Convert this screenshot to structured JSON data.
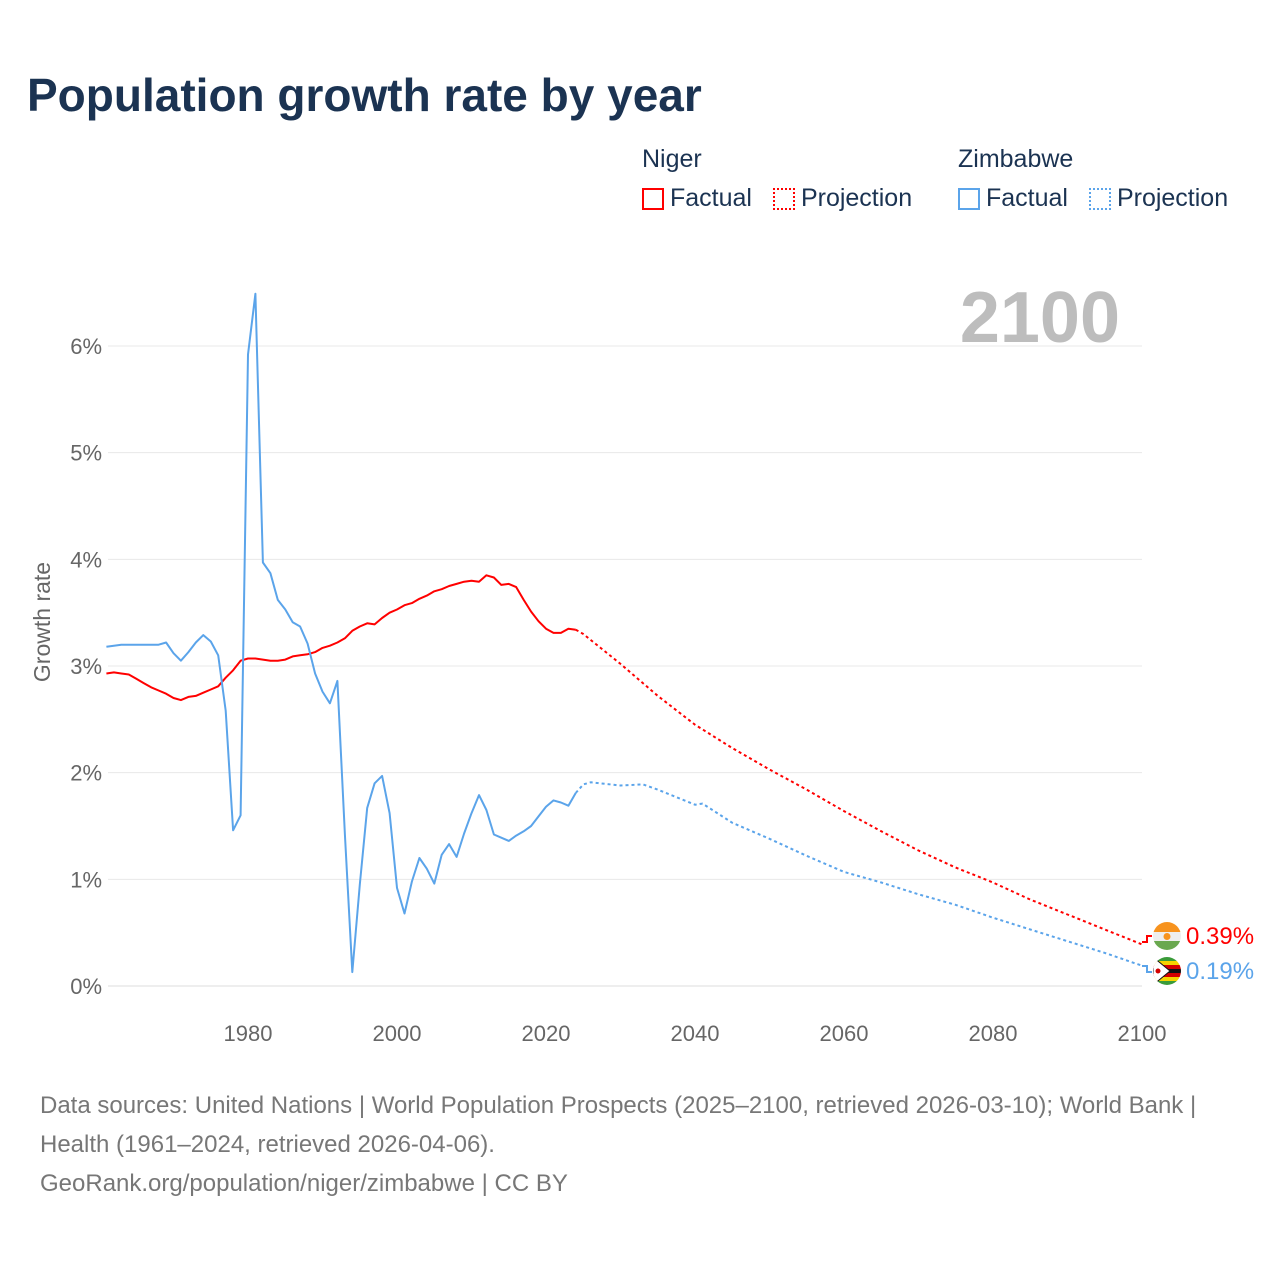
{
  "title": "Population growth rate by year",
  "legend": {
    "groups": [
      {
        "name": "Niger",
        "color": "#ff0000",
        "items": [
          "Factual",
          "Projection"
        ]
      },
      {
        "name": "Zimbabwe",
        "color": "#5ba4ea",
        "items": [
          "Factual",
          "Projection"
        ]
      }
    ]
  },
  "year_label": "2100",
  "end_labels": {
    "niger": "0.39%",
    "zimbabwe": "0.19%"
  },
  "footer": {
    "sources": "Data sources: United Nations | World Population Prospects (2025–2100, retrieved 2026-03-10); World Bank | Health (1961–2024, retrieved 2026-04-06).",
    "attribution": "GeoRank.org/population/niger/zimbabwe | CC BY"
  },
  "chart_data": {
    "type": "line",
    "title": "Population growth rate by year",
    "xlabel": "",
    "ylabel": "Growth rate",
    "xlim": [
      1961,
      2100
    ],
    "ylim": [
      0,
      6.5
    ],
    "xticks": [
      1980,
      2000,
      2020,
      2040,
      2060,
      2080,
      2100
    ],
    "yticks": [
      0,
      1,
      2,
      3,
      4,
      5,
      6
    ],
    "ytick_labels": [
      "0%",
      "1%",
      "2%",
      "3%",
      "4%",
      "5%",
      "6%"
    ],
    "grid": true,
    "series": [
      {
        "name": "Niger Factual",
        "color": "#ff0000",
        "style": "solid",
        "start_year": 1961,
        "values": [
          2.93,
          2.94,
          2.93,
          2.92,
          2.88,
          2.84,
          2.8,
          2.77,
          2.74,
          2.7,
          2.68,
          2.71,
          2.72,
          2.75,
          2.78,
          2.81,
          2.89,
          2.96,
          3.05,
          3.07,
          3.07,
          3.06,
          3.05,
          3.05,
          3.06,
          3.09,
          3.1,
          3.11,
          3.13,
          3.17,
          3.19,
          3.22,
          3.26,
          3.33,
          3.37,
          3.4,
          3.39,
          3.45,
          3.5,
          3.53,
          3.57,
          3.59,
          3.63,
          3.66,
          3.7,
          3.72,
          3.75,
          3.77,
          3.79,
          3.8,
          3.79,
          3.85,
          3.83,
          3.76,
          3.77,
          3.74,
          3.62,
          3.51,
          3.42,
          3.35,
          3.31,
          3.31,
          3.35,
          3.34
        ]
      },
      {
        "name": "Niger Projection",
        "color": "#ff0000",
        "style": "dotted",
        "x": [
          2024,
          2025,
          2030,
          2035,
          2040,
          2045,
          2050,
          2055,
          2060,
          2065,
          2070,
          2075,
          2080,
          2085,
          2090,
          2095,
          2100
        ],
        "values": [
          3.34,
          3.3,
          3.02,
          2.72,
          2.45,
          2.23,
          2.03,
          1.84,
          1.64,
          1.45,
          1.27,
          1.11,
          0.97,
          0.81,
          0.67,
          0.53,
          0.39
        ]
      },
      {
        "name": "Zimbabwe Factual",
        "color": "#5ba4ea",
        "style": "solid",
        "start_year": 1961,
        "values": [
          3.18,
          3.19,
          3.2,
          3.2,
          3.2,
          3.2,
          3.2,
          3.2,
          3.22,
          3.12,
          3.05,
          3.13,
          3.22,
          3.29,
          3.23,
          3.1,
          2.58,
          1.46,
          1.6,
          5.92,
          6.49,
          3.97,
          3.87,
          3.62,
          3.53,
          3.41,
          3.37,
          3.21,
          2.93,
          2.76,
          2.65,
          2.86,
          1.42,
          0.13,
          0.95,
          1.67,
          1.9,
          1.97,
          1.62,
          0.92,
          0.68,
          0.98,
          1.2,
          1.1,
          0.96,
          1.23,
          1.33,
          1.21,
          1.43,
          1.62,
          1.79,
          1.65,
          1.42,
          1.39,
          1.36,
          1.41,
          1.45,
          1.5,
          1.59,
          1.68,
          1.74,
          1.72,
          1.69,
          1.81
        ]
      },
      {
        "name": "Zimbabwe Projection",
        "color": "#5ba4ea",
        "style": "dotted",
        "x": [
          2024,
          2025,
          2026,
          2030,
          2033,
          2035,
          2040,
          2041,
          2045,
          2050,
          2055,
          2060,
          2065,
          2070,
          2075,
          2080,
          2085,
          2090,
          2095,
          2100
        ],
        "values": [
          1.81,
          1.89,
          1.91,
          1.88,
          1.89,
          1.84,
          1.7,
          1.71,
          1.53,
          1.38,
          1.22,
          1.07,
          0.97,
          0.86,
          0.76,
          0.64,
          0.53,
          0.42,
          0.31,
          0.19
        ]
      }
    ]
  }
}
